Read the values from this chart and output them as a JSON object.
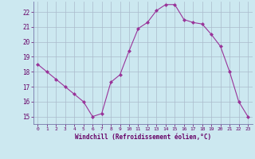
{
  "x_values": [
    0,
    1,
    2,
    3,
    4,
    5,
    6,
    7,
    8,
    9,
    10,
    11,
    12,
    13,
    14,
    15,
    16,
    17,
    18,
    19,
    20,
    21,
    22,
    23
  ],
  "y_values": [
    18.5,
    18.0,
    17.5,
    17.0,
    16.5,
    16.0,
    15.0,
    15.2,
    17.3,
    17.8,
    19.4,
    20.9,
    21.3,
    22.1,
    22.5,
    22.5,
    21.5,
    21.3,
    21.2,
    20.5,
    19.7,
    18.0,
    16.0,
    15.0
  ],
  "line_color": "#993399",
  "marker": "D",
  "marker_size": 2,
  "bg_color": "#cce8f0",
  "grid_color": "#aabbcc",
  "axis_color": "#7777aa",
  "tick_color": "#660066",
  "xlabel": "Windchill (Refroidissement éolien,°C)",
  "xlim": [
    -0.5,
    23.5
  ],
  "ylim": [
    14.5,
    22.7
  ],
  "yticks": [
    15,
    16,
    17,
    18,
    19,
    20,
    21,
    22
  ],
  "xticks": [
    0,
    1,
    2,
    3,
    4,
    5,
    6,
    7,
    8,
    9,
    10,
    11,
    12,
    13,
    14,
    15,
    16,
    17,
    18,
    19,
    20,
    21,
    22,
    23
  ]
}
